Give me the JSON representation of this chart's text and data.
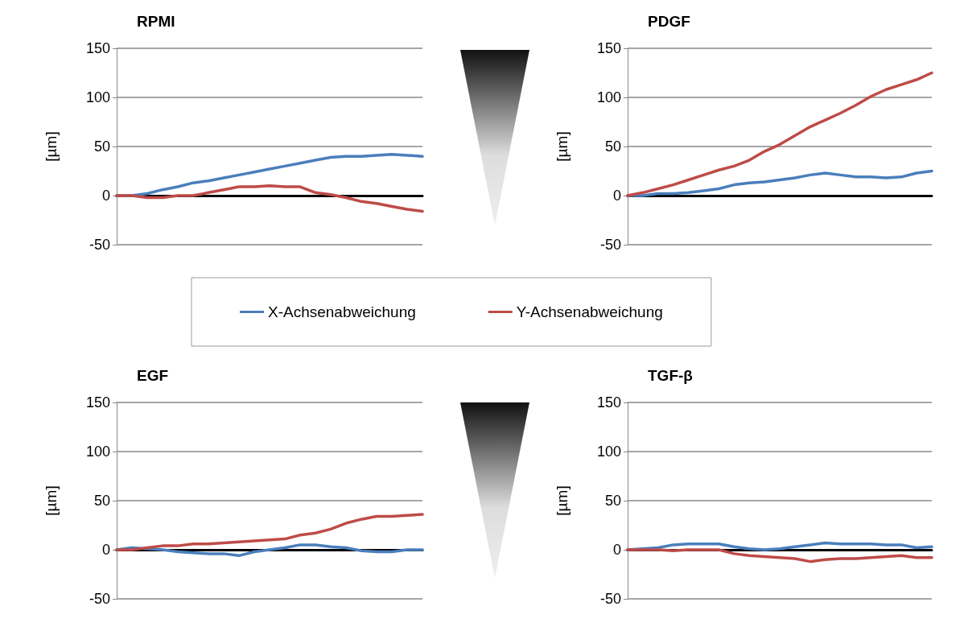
{
  "chart_data": [
    {
      "type": "line",
      "title": "RPMI",
      "ylabel": "[µm]",
      "categories": [
        null,
        null,
        null,
        null,
        null,
        null,
        null,
        null,
        null,
        null,
        null,
        null,
        null,
        null,
        null,
        null,
        null,
        null,
        null,
        null,
        null
      ],
      "ylim": [
        -50,
        150
      ],
      "yticks": [
        -50,
        0,
        50,
        100,
        150
      ],
      "grid": "y",
      "legend": "bottom",
      "marker": "none",
      "line_style": "solid",
      "series": [
        {
          "name": "X-Achsenabweichung",
          "color": "#4a7ebb",
          "values": [
            0,
            0,
            2,
            6,
            9,
            13,
            15,
            18,
            21,
            24,
            27,
            30,
            33,
            36,
            39,
            40,
            40,
            41,
            42,
            41,
            40
          ]
        },
        {
          "name": "Y-Achsenabweichung",
          "color": "#be4b48",
          "values": [
            0,
            0,
            -2,
            -2,
            0,
            0,
            3,
            6,
            9,
            9,
            10,
            9,
            9,
            3,
            1,
            -2,
            -6,
            -8,
            -11,
            -14,
            -16
          ]
        }
      ]
    },
    {
      "type": "line",
      "title": "PDGF",
      "ylabel": "[µm]",
      "categories": [
        null,
        null,
        null,
        null,
        null,
        null,
        null,
        null,
        null,
        null,
        null,
        null,
        null,
        null,
        null,
        null,
        null,
        null,
        null,
        null,
        null
      ],
      "ylim": [
        -50,
        150
      ],
      "yticks": [
        -50,
        0,
        50,
        100,
        150
      ],
      "grid": "y",
      "marker": "none",
      "line_style": "solid",
      "series": [
        {
          "color": "#4a7ebb",
          "values": [
            0,
            0,
            2,
            2,
            3,
            5,
            7,
            11,
            13,
            14,
            16,
            18,
            21,
            23,
            21,
            19,
            19,
            18,
            19,
            23,
            25
          ]
        },
        {
          "color": "#be4b48",
          "values": [
            0,
            3,
            7,
            11,
            16,
            21,
            26,
            30,
            36,
            45,
            52,
            61,
            70,
            77,
            84,
            92,
            101,
            108,
            113,
            118,
            125
          ]
        }
      ]
    },
    {
      "type": "line",
      "title": "EGF",
      "ylabel": "[µm]",
      "categories": [
        null,
        null,
        null,
        null,
        null,
        null,
        null,
        null,
        null,
        null,
        null,
        null,
        null,
        null,
        null,
        null,
        null,
        null,
        null,
        null,
        null
      ],
      "ylim": [
        -50,
        150
      ],
      "yticks": [
        -50,
        0,
        50,
        100,
        150
      ],
      "grid": "y",
      "marker": "none",
      "line_style": "solid",
      "series": [
        {
          "color": "#4a7ebb",
          "values": [
            0,
            2,
            1,
            0,
            -2,
            -3,
            -4,
            -4,
            -6,
            -2,
            0,
            2,
            5,
            5,
            3,
            2,
            -1,
            -2,
            -2,
            0,
            0
          ]
        },
        {
          "color": "#be4b48",
          "values": [
            0,
            0,
            2,
            4,
            4,
            6,
            6,
            7,
            8,
            9,
            10,
            11,
            15,
            17,
            21,
            27,
            31,
            34,
            34,
            35,
            36
          ]
        }
      ]
    },
    {
      "type": "line",
      "title": "TGF-β",
      "ylabel": "[µm]",
      "categories": [
        null,
        null,
        null,
        null,
        null,
        null,
        null,
        null,
        null,
        null,
        null,
        null,
        null,
        null,
        null,
        null,
        null,
        null,
        null,
        null,
        null
      ],
      "ylim": [
        -50,
        150
      ],
      "yticks": [
        -50,
        0,
        50,
        100,
        150
      ],
      "grid": "y",
      "marker": "none",
      "line_style": "solid",
      "series": [
        {
          "color": "#4a7ebb",
          "values": [
            0,
            1,
            2,
            5,
            6,
            6,
            6,
            3,
            1,
            0,
            1,
            3,
            5,
            7,
            6,
            6,
            6,
            5,
            5,
            2,
            3
          ]
        },
        {
          "color": "#be4b48",
          "values": [
            0,
            0,
            0,
            -1,
            0,
            0,
            0,
            -4,
            -6,
            -7,
            -8,
            -9,
            -12,
            -10,
            -9,
            -9,
            -8,
            -7,
            -6,
            -8,
            -8
          ]
        }
      ]
    }
  ]
}
